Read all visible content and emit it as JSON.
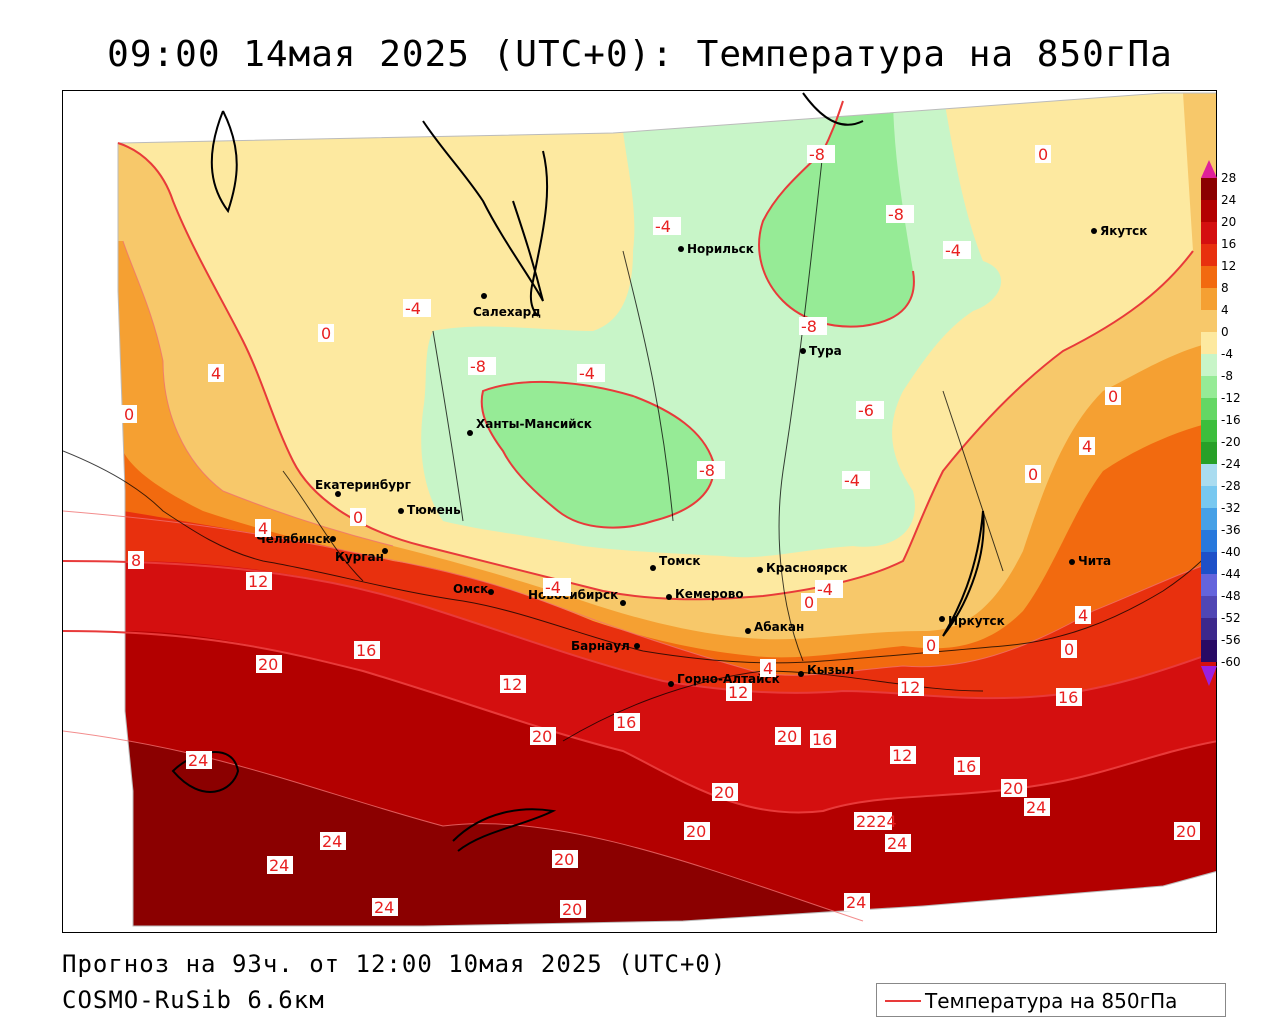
{
  "title": "09:00 14мая 2025 (UTC+0): Температура на 850гПа",
  "footer": {
    "forecast": "Прогноз на 93ч. от 12:00 10мая 2025 (UTC+0)",
    "model": "COSMO-RuSib 6.6км"
  },
  "key": {
    "label": "Температура на 850гПа",
    "color": "#e83a3a"
  },
  "colors": {
    "c28": "#8b0000",
    "c24": "#b30000",
    "c20": "#d40f0f",
    "c16": "#e8300e",
    "c12": "#f26a0f",
    "c8": "#f5a032",
    "c4": "#f7c86a",
    "c0": "#fde9a0",
    "cm4": "#c8f5c8",
    "cm8": "#96eb96",
    "cm12": "#64d764",
    "cm16": "#3cbe3c"
  },
  "legend": {
    "ticks": [
      "28",
      "24",
      "20",
      "16",
      "12",
      "8",
      "4",
      "0",
      "-4",
      "-8",
      "-12",
      "-16",
      "-20",
      "-24",
      "-28",
      "-32",
      "-36",
      "-40",
      "-44",
      "-48",
      "-52",
      "-56",
      "-60"
    ],
    "colors": [
      "#8b0000",
      "#b30000",
      "#d40f0f",
      "#e8300e",
      "#f26a0f",
      "#f5a032",
      "#f7c86a",
      "#fde9a0",
      "#c8f5c8",
      "#96eb96",
      "#64d764",
      "#3cbe3c",
      "#28a028",
      "#aadcf0",
      "#78c8f0",
      "#46a0e6",
      "#2878dc",
      "#1e50c8",
      "#6464dc",
      "#5046b4",
      "#3c288c",
      "#280a64"
    ]
  },
  "cities": [
    {
      "name": "Норильск"
    },
    {
      "name": "Якутск"
    },
    {
      "name": "Салехард"
    },
    {
      "name": "Тура"
    },
    {
      "name": "Ханты-Мансийск"
    },
    {
      "name": "Екатеринбург"
    },
    {
      "name": "Тюмень"
    },
    {
      "name": "Челябинск"
    },
    {
      "name": "Курган"
    },
    {
      "name": "Омск"
    },
    {
      "name": "Новосибирск"
    },
    {
      "name": "Томск"
    },
    {
      "name": "Кемерово"
    },
    {
      "name": "Красноярск"
    },
    {
      "name": "Абакан"
    },
    {
      "name": "Иркутск"
    },
    {
      "name": "Чита"
    },
    {
      "name": "Барнаул"
    },
    {
      "name": "Горно-Алтайск"
    },
    {
      "name": "Кызыл"
    }
  ],
  "contour_labels": [
    "0",
    "-8",
    "-4",
    "-8",
    "-4",
    "-4",
    "-8",
    "-8",
    "-4",
    "-6",
    "-4",
    "0",
    "-4",
    "-8",
    "-4",
    "0",
    "4",
    "0",
    "4",
    "0",
    "0",
    "4",
    "8",
    "12",
    "12",
    "16",
    "20",
    "12",
    "16",
    "20",
    "20",
    "16",
    "12",
    "16",
    "20",
    "24",
    "24",
    "24",
    "24",
    "24",
    "20",
    "20",
    "20",
    "2224",
    "24",
    "24",
    "24",
    "20",
    "20",
    "12",
    "16",
    "4",
    "0",
    "4",
    "0",
    "0"
  ]
}
